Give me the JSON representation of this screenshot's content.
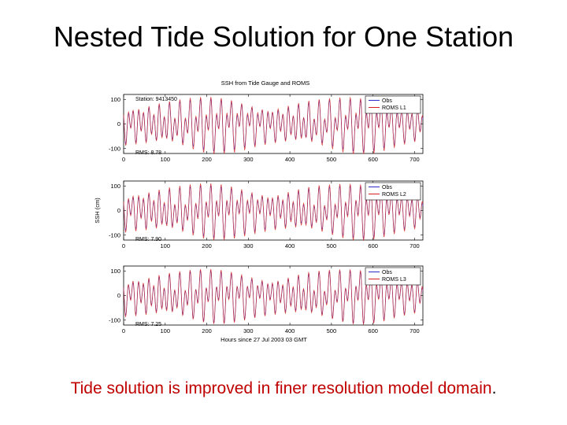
{
  "slide": {
    "title": "Nested Tide Solution for One Station",
    "caption": "Tide solution is improved in finer resolution model domain",
    "caption_end": "."
  },
  "colors": {
    "obs": "#2b2bcc",
    "roms": "#d42020",
    "caption": "#c00000"
  },
  "chart_data": [
    {
      "type": "line",
      "title": "SSH from Tide Gauge and ROMS",
      "station_label": "Station: 9413450",
      "rms_label": "RMS: 8.78",
      "xlabel": "",
      "ylabel": "",
      "xlim": [
        0,
        720
      ],
      "ylim": [
        -120,
        120
      ],
      "xticks": [
        0,
        100,
        200,
        300,
        400,
        500,
        600,
        700
      ],
      "yticks": [
        -100,
        0,
        100
      ],
      "grid": false,
      "legend_position": "top-right",
      "series": [
        {
          "name": "Obs",
          "color": "#2b2bcc",
          "values": []
        },
        {
          "name": "ROMS L1",
          "color": "#d42020",
          "values": []
        }
      ]
    },
    {
      "type": "line",
      "title": "",
      "station_label": "",
      "rms_label": "RMS: 7.90",
      "xlabel": "",
      "ylabel": "SSH (cm)",
      "xlim": [
        0,
        720
      ],
      "ylim": [
        -120,
        120
      ],
      "xticks": [
        0,
        100,
        200,
        300,
        400,
        500,
        600,
        700
      ],
      "yticks": [
        -100,
        0,
        100
      ],
      "grid": false,
      "legend_position": "top-right",
      "series": [
        {
          "name": "Obs",
          "color": "#2b2bcc",
          "values": []
        },
        {
          "name": "ROMS L2",
          "color": "#d42020",
          "values": []
        }
      ]
    },
    {
      "type": "line",
      "title": "",
      "station_label": "",
      "rms_label": "RMS: 7.25",
      "xlabel": "Hours since 27 Jul 2003 03 GMT",
      "ylabel": "",
      "xlim": [
        0,
        720
      ],
      "ylim": [
        -120,
        120
      ],
      "xticks": [
        0,
        100,
        200,
        300,
        400,
        500,
        600,
        700
      ],
      "yticks": [
        -100,
        0,
        100
      ],
      "grid": false,
      "legend_position": "top-right",
      "series": [
        {
          "name": "Obs",
          "color": "#2b2bcc",
          "values": []
        },
        {
          "name": "ROMS L3",
          "color": "#d42020",
          "values": []
        }
      ]
    }
  ]
}
